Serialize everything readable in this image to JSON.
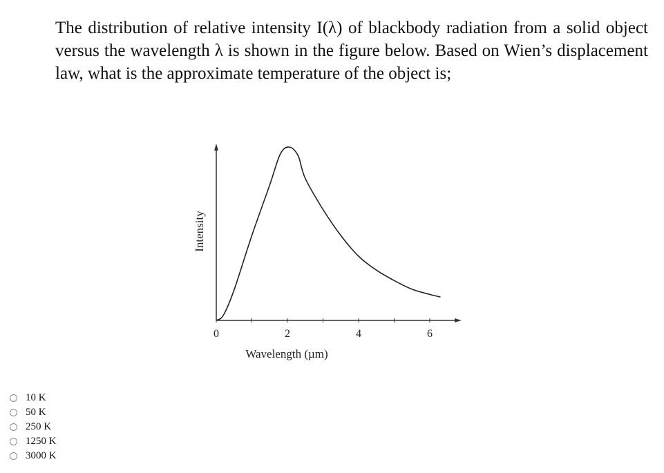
{
  "question": {
    "text": "The distribution of relative intensity I(λ) of blackbody radiation from a solid object versus the wavelength λ is shown in the figure below. Based on Wien’s displacement law, what is the approximate temperature of the object is;"
  },
  "chart_data": {
    "type": "line",
    "title": "",
    "xlabel": "Wavelength (µm)",
    "ylabel": "Intensity",
    "xlim": [
      0,
      7
    ],
    "ylim": [
      0,
      1.05
    ],
    "xticks": [
      0,
      2,
      4,
      6
    ],
    "xtick_labels": [
      "0",
      "2",
      "4",
      "6"
    ],
    "minor_xticks": [
      1,
      3,
      5
    ],
    "grid": false,
    "series": [
      {
        "x": [
          0,
          0.2,
          0.5,
          1,
          1.5,
          1.8,
          2.05,
          2.3,
          2.5,
          3,
          3.5,
          4,
          4.5,
          5,
          5.5,
          6,
          6.3
        ],
        "y": [
          0,
          0.03,
          0.175,
          0.49,
          0.78,
          0.96,
          1.0,
          0.95,
          0.82,
          0.64,
          0.49,
          0.37,
          0.29,
          0.23,
          0.18,
          0.15,
          0.135
        ]
      }
    ],
    "line_color": "#222222"
  },
  "options": [
    {
      "label": "10 K",
      "selected": false
    },
    {
      "label": "50 K",
      "selected": false
    },
    {
      "label": "250 K",
      "selected": false
    },
    {
      "label": "1250 K",
      "selected": false
    },
    {
      "label": "3000 K",
      "selected": false
    }
  ]
}
